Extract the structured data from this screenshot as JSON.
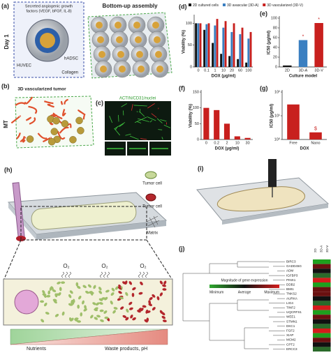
{
  "figure": {
    "panel_labels": [
      "(a)",
      "(b)",
      "(c)",
      "(d)",
      "(e)",
      "(f)",
      "(g)",
      "(h)",
      "(i)",
      "(j)"
    ],
    "a": {
      "row_label": "Day 1",
      "factors": [
        "Secreted angiogenic growth",
        "factors (VEGF, bFGF, IL-8)"
      ],
      "cell_1": "hADSC",
      "cell_2": "HUVEC",
      "matrix": "Collagen",
      "assembly": "Bottom-up assembly"
    },
    "b": {
      "row_label": "MT",
      "title": "3D vascularized tumor"
    },
    "c": {
      "stain": "ACTIN/CD31/nuclei"
    },
    "h": {
      "legend": [
        "Tumor cell",
        "Tumor cell",
        "Matrix"
      ],
      "oxygen": [
        "O₂",
        "O₂",
        "O₂"
      ],
      "gradient_low": "Nutrients",
      "gradient_high": "Waste products, pH"
    },
    "j": {
      "genes": [
        "BIRC3",
        "GADD45G",
        "ADM",
        "IGFBP3",
        "PINX1",
        "DDB2",
        "BMI1",
        "TNKS2",
        "AURKA",
        "LIG4",
        "TINF2",
        "UQCRFS1",
        "WEE1",
        "STMN1",
        "DKC1",
        "FGF2",
        "XIAP",
        "MCM2",
        "CPT2",
        "ERCC3"
      ],
      "columns": [
        "2D",
        "3D-A",
        "3D-V"
      ],
      "scale_title": "Magnitude of gene expression",
      "scale_labels": [
        "Minimum",
        "Average",
        "Maximum"
      ]
    }
  },
  "chart_data": [
    {
      "type": "bar",
      "x_label": "DOX (μg/ml)",
      "y_label": "Viability (%)",
      "categories": [
        "0",
        "0.1",
        "1",
        "10",
        "20",
        "60",
        "100"
      ],
      "series": [
        {
          "name": "2D cultured cells",
          "color": "#111111",
          "values": [
            100,
            85,
            55,
            30,
            25,
            18,
            10
          ]
        },
        {
          "name": "3D avascular (3D-A)",
          "color": "#3a7fc1",
          "values": [
            100,
            98,
            95,
            90,
            80,
            75,
            65
          ]
        },
        {
          "name": "3D vascularized (3D-V)",
          "color": "#c8201e",
          "values": [
            100,
            100,
            110,
            105,
            100,
            90,
            80
          ]
        }
      ],
      "ylim": [
        0,
        115
      ],
      "yticks": [
        0,
        50,
        100
      ]
    },
    {
      "type": "bar",
      "x_label": "Culture model",
      "y_label": "IC50 (μg/ml)",
      "categories": [
        "2D",
        "3D-A",
        "3D-V"
      ],
      "values": [
        3,
        55,
        90
      ],
      "colors": [
        "#111111",
        "#3a7fc1",
        "#c8201e"
      ],
      "significance": [
        null,
        "*",
        "*"
      ],
      "ylim": [
        0,
        100
      ],
      "yticks": [
        0,
        20,
        40,
        60,
        80,
        100
      ]
    },
    {
      "type": "bar",
      "x_label": "DOX (μg/ml)",
      "y_label": "Viability (%)",
      "categories": [
        "0",
        "0.2",
        "2",
        "10",
        "30"
      ],
      "values": [
        100,
        93,
        50,
        10,
        5
      ],
      "color": "#c8201e",
      "ylim": [
        0,
        150
      ],
      "yticks": [
        0,
        50,
        100,
        150
      ]
    },
    {
      "type": "bar",
      "x_label": "DOX",
      "y_label": "IC50 (μg/ml)",
      "log": true,
      "categories": [
        "Free",
        "Nano"
      ],
      "values": [
        30,
        2
      ],
      "color": "#c8201e",
      "significance": [
        null,
        "$"
      ],
      "ylim": [
        1,
        100
      ],
      "yticks": [
        {
          "value": 1,
          "label": "10⁰"
        },
        {
          "value": 10,
          "label": "10¹"
        },
        {
          "value": 100,
          "label": "10²"
        }
      ]
    }
  ]
}
